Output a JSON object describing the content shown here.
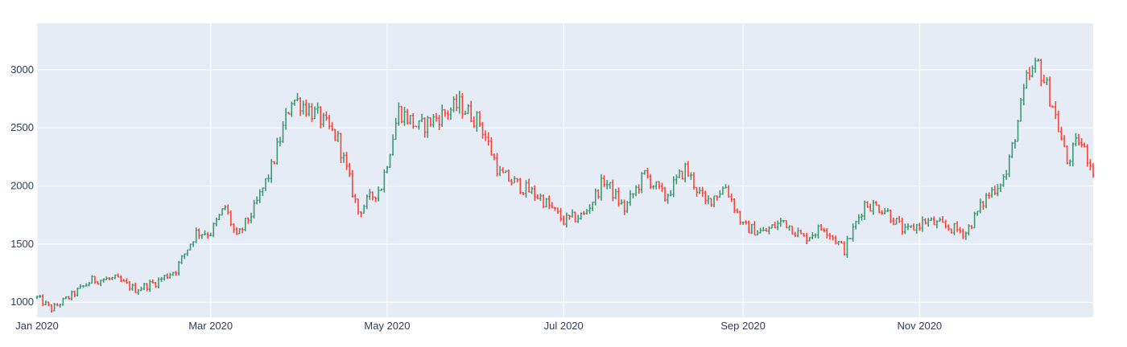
{
  "chart_data": {
    "type": "ohlc",
    "title": "",
    "xlabel": "",
    "ylabel": "",
    "xlim": [
      "2020-01-01",
      "2020-12-31"
    ],
    "ylim": [
      870,
      3400
    ],
    "grid": true,
    "legend": "none",
    "x_ticks": [
      {
        "date": "2020-01-01",
        "label": "Jan 2020"
      },
      {
        "date": "2020-03-01",
        "label": "Mar 2020"
      },
      {
        "date": "2020-05-01",
        "label": "May 2020"
      },
      {
        "date": "2020-07-01",
        "label": "Jul 2020"
      },
      {
        "date": "2020-09-01",
        "label": "Sep 2020"
      },
      {
        "date": "2020-11-01",
        "label": "Nov 2020"
      }
    ],
    "y_ticks": [
      1000,
      1500,
      2000,
      2500,
      3000
    ],
    "colors": {
      "increasing": "#3d9970",
      "decreasing": "#ff4136",
      "plot_bg": "#e5ecf6",
      "grid": "#ffffff",
      "tick_text": "#2a3f5f"
    },
    "close_anchors": [
      [
        "2020-01-01",
        1040
      ],
      [
        "2020-01-06",
        940
      ],
      [
        "2020-01-13",
        1060
      ],
      [
        "2020-01-20",
        1190
      ],
      [
        "2020-01-28",
        1200
      ],
      [
        "2020-02-04",
        1110
      ],
      [
        "2020-02-11",
        1170
      ],
      [
        "2020-02-18",
        1280
      ],
      [
        "2020-02-25",
        1600
      ],
      [
        "2020-03-01",
        1600
      ],
      [
        "2020-03-06",
        1820
      ],
      [
        "2020-03-10",
        1550
      ],
      [
        "2020-03-16",
        1800
      ],
      [
        "2020-03-22",
        2150
      ],
      [
        "2020-03-29",
        2750
      ],
      [
        "2020-04-01",
        2720
      ],
      [
        "2020-04-07",
        2600
      ],
      [
        "2020-04-14",
        2400
      ],
      [
        "2020-04-21",
        1780
      ],
      [
        "2020-04-29",
        2000
      ],
      [
        "2020-05-05",
        2650
      ],
      [
        "2020-05-12",
        2500
      ],
      [
        "2020-05-19",
        2600
      ],
      [
        "2020-05-26",
        2700
      ],
      [
        "2020-06-02",
        2550
      ],
      [
        "2020-06-09",
        2100
      ],
      [
        "2020-06-16",
        2000
      ],
      [
        "2020-06-23",
        1900
      ],
      [
        "2020-07-01",
        1700
      ],
      [
        "2020-07-08",
        1750
      ],
      [
        "2020-07-15",
        2050
      ],
      [
        "2020-07-22",
        1800
      ],
      [
        "2020-07-29",
        2100
      ],
      [
        "2020-08-05",
        1900
      ],
      [
        "2020-08-12",
        2150
      ],
      [
        "2020-08-19",
        1850
      ],
      [
        "2020-08-26",
        2000
      ],
      [
        "2020-09-01",
        1650
      ],
      [
        "2020-09-08",
        1600
      ],
      [
        "2020-09-15",
        1700
      ],
      [
        "2020-09-22",
        1550
      ],
      [
        "2020-09-29",
        1650
      ],
      [
        "2020-10-06",
        1450
      ],
      [
        "2020-10-13",
        1850
      ],
      [
        "2020-10-20",
        1800
      ],
      [
        "2020-10-27",
        1600
      ],
      [
        "2020-11-03",
        1700
      ],
      [
        "2020-11-10",
        1650
      ],
      [
        "2020-11-17",
        1600
      ],
      [
        "2020-11-24",
        1900
      ],
      [
        "2020-12-01",
        2100
      ],
      [
        "2020-12-08",
        2900
      ],
      [
        "2020-12-12",
        3050
      ],
      [
        "2020-12-17",
        2700
      ],
      [
        "2020-12-22",
        2200
      ],
      [
        "2020-12-26",
        2400
      ],
      [
        "2020-12-31",
        2150
      ]
    ]
  }
}
